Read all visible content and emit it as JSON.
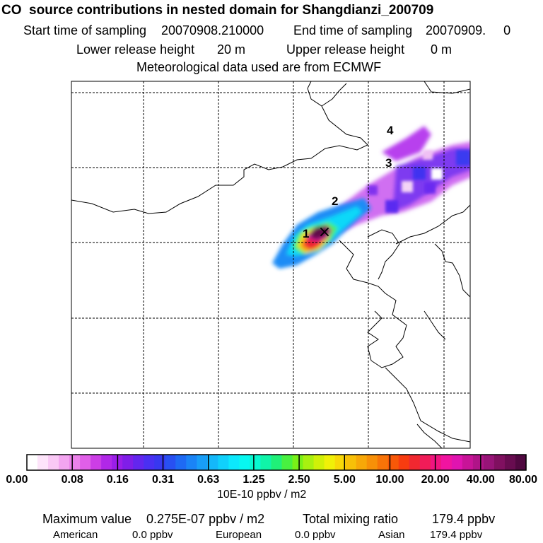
{
  "header": {
    "title": "CO  source contributions in nested domain for Shangdianzi_200709",
    "start_label": "Start time of sampling",
    "start_value": "20070908.210000",
    "end_label": "End time of sampling",
    "end_value": "20070909.     0",
    "lower_label": "Lower release height",
    "lower_value": "20 m",
    "upper_label": "Upper release height",
    "upper_value": "0 m",
    "met_text": "Meteorological data used are from ECMWF"
  },
  "map": {
    "markers": [
      "1",
      "2",
      "3",
      "4"
    ],
    "receptor_symbol": "×"
  },
  "legend": {
    "tick_labels": [
      "0.00",
      "0.08",
      "0.16",
      "0.31",
      "0.63",
      "1.25",
      "2.50",
      "5.00",
      "10.00",
      "20.00",
      "40.00",
      "80.00"
    ],
    "unit": "10E-10 ppbv / m2",
    "colors": [
      "#ffffff",
      "#fde4fa",
      "#f9c8f5",
      "#f3a5f0",
      "#ec82ea",
      "#e05fe8",
      "#cc3ee6",
      "#b128e8",
      "#9a1ee8",
      "#7f1ee8",
      "#6326ee",
      "#4a30f2",
      "#3838f0",
      "#2850f2",
      "#1e6af4",
      "#1a84f6",
      "#189ef8",
      "#14b8fa",
      "#10d0fb",
      "#0ce8fc",
      "#08f8f0",
      "#08f8d0",
      "#10f4a8",
      "#20f078",
      "#48f040",
      "#78f018",
      "#a8f010",
      "#d0f008",
      "#f0f008",
      "#f8d808",
      "#f8c008",
      "#f8a808",
      "#f89008",
      "#f87408",
      "#f85808",
      "#f83c10",
      "#f02830",
      "#f01c58",
      "#f01480",
      "#f014a0",
      "#e014b0",
      "#c81498",
      "#b01488",
      "#981478",
      "#801060",
      "#680c50",
      "#500840"
    ]
  },
  "footer": {
    "max_label": "Maximum value",
    "max_value": "0.275E-07 ppbv / m2",
    "total_label": "Total mixing ratio",
    "total_value": "179.4 ppbv",
    "american_label": "American",
    "american_value": "0.0 ppbv",
    "european_label": "European",
    "european_value": "0.0 ppbv",
    "asian_label": "Asian",
    "asian_value": "179.4 ppbv"
  }
}
